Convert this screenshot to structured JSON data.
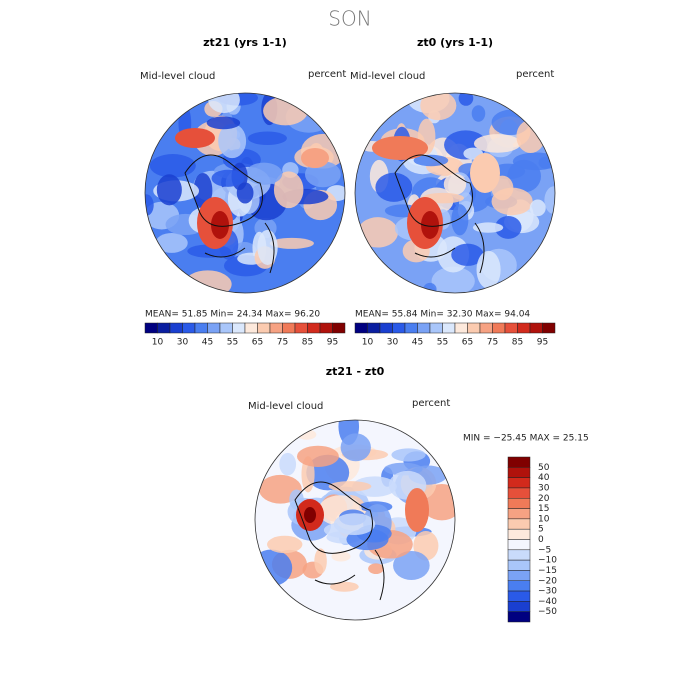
{
  "title": "SON",
  "panels": [
    {
      "title": "zt21 (yrs 1-1)",
      "variable": "Mid-level cloud",
      "units": "percent",
      "stats": "MEAN=  51.85  Min=  24.34  Max=  96.20"
    },
    {
      "title": "zt0 (yrs 1-1)",
      "variable": "Mid-level cloud",
      "units": "percent",
      "stats": "MEAN=  55.84  Min=  32.30  Max=  94.04"
    },
    {
      "title": "zt21 - zt0",
      "variable": "Mid-level cloud",
      "units": "percent",
      "stats": "MIN = −25.45 MAX =  25.15"
    }
  ],
  "colorbar": {
    "labels": [
      "10",
      "30",
      "45",
      "55",
      "65",
      "75",
      "85",
      "95"
    ],
    "colors": [
      "#000080",
      "#0a1ea0",
      "#1a3fd0",
      "#2a5ae8",
      "#4a7ef0",
      "#7aa2f5",
      "#a9c6fa",
      "#dbe8fc",
      "#fde9dc",
      "#fbcbb0",
      "#f6a283",
      "#f07a58",
      "#e6503a",
      "#d22a1c",
      "#b0120c",
      "#800000"
    ]
  },
  "diff_colorbar": {
    "labels": [
      "50",
      "40",
      "30",
      "20",
      "15",
      "10",
      "5",
      "0",
      "−5",
      "−10",
      "−15",
      "−20",
      "−30",
      "−40",
      "−50"
    ],
    "colors": [
      "#800000",
      "#b0120c",
      "#d22a1c",
      "#e6503a",
      "#f07a58",
      "#f6a283",
      "#fbcbb0",
      "#fde9dc",
      "#f4f6fe",
      "#c9dbfb",
      "#a9c6fa",
      "#7aa2f5",
      "#4a7ef0",
      "#2a5ae8",
      "#1a3fd0",
      "#000080"
    ]
  }
}
